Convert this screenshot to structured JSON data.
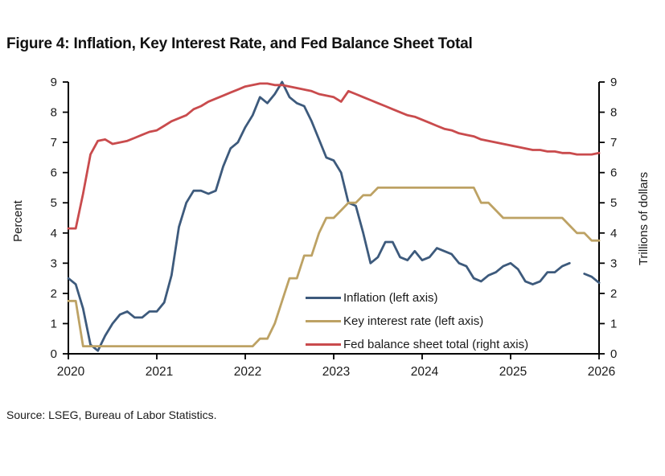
{
  "figure": {
    "title": "Figure 4: Inflation, Key Interest Rate, and Fed Balance Sheet Total",
    "source": "Source: LSEG, Bureau of Labor Statistics."
  },
  "colors": {
    "inflation": "#3d5a7c",
    "key_interest_rate": "#bda264",
    "fed_balance_sheet": "#c94b4d",
    "axis": "#000000",
    "text": "#1a1a1a"
  },
  "chart_data": {
    "type": "line",
    "title": "Figure 4: Inflation, Key Interest Rate, and Fed Balance Sheet Total",
    "x_axis": {
      "label": "",
      "range": [
        2020,
        2026
      ],
      "ticks": [
        2020,
        2021,
        2022,
        2023,
        2024,
        2025,
        2026
      ]
    },
    "y_left_axis": {
      "label": "Percent",
      "range": [
        0,
        9
      ],
      "ticks": [
        0,
        1,
        2,
        3,
        4,
        5,
        6,
        7,
        8,
        9
      ]
    },
    "y_right_axis": {
      "label": "Trillions of dollars",
      "range": [
        0,
        9
      ],
      "ticks": [
        0,
        1,
        2,
        3,
        4,
        5,
        6,
        7,
        8,
        9
      ]
    },
    "legend_position": "inside-middle-right",
    "grid": false,
    "x_unit": "monthly_decimal_year",
    "series": [
      {
        "id": "inflation",
        "name": "Inflation (left axis)",
        "axis": "left",
        "color": "#3d5a7c",
        "x_start": 2020,
        "x_step_months": 1,
        "note": "gap at Oct 2025 (no data published)",
        "values": [
          2.5,
          2.3,
          1.5,
          0.3,
          0.1,
          0.6,
          1.0,
          1.3,
          1.4,
          1.2,
          1.2,
          1.4,
          1.4,
          1.7,
          2.6,
          4.2,
          5.0,
          5.4,
          5.4,
          5.3,
          5.4,
          6.2,
          6.8,
          7.0,
          7.5,
          7.9,
          8.5,
          8.3,
          8.6,
          9.0,
          8.5,
          8.3,
          8.2,
          7.7,
          7.1,
          6.5,
          6.4,
          6.0,
          5.0,
          4.9,
          4.0,
          3.0,
          3.2,
          3.7,
          3.7,
          3.2,
          3.1,
          3.4,
          3.1,
          3.2,
          3.5,
          3.4,
          3.3,
          3.0,
          2.9,
          2.5,
          2.4,
          2.6,
          2.7,
          2.9,
          3.0,
          2.8,
          2.4,
          2.3,
          2.4,
          2.7,
          2.7,
          2.9,
          3.0,
          null,
          2.65,
          2.55,
          2.35
        ]
      },
      {
        "id": "key-interest-rate",
        "name": "Key interest rate (left axis)",
        "axis": "left",
        "color": "#bda264",
        "x_start": 2020,
        "x_step_months": 1,
        "values": [
          1.75,
          1.75,
          0.25,
          0.25,
          0.25,
          0.25,
          0.25,
          0.25,
          0.25,
          0.25,
          0.25,
          0.25,
          0.25,
          0.25,
          0.25,
          0.25,
          0.25,
          0.25,
          0.25,
          0.25,
          0.25,
          0.25,
          0.25,
          0.25,
          0.25,
          0.25,
          0.5,
          0.5,
          1.0,
          1.75,
          2.5,
          2.5,
          3.25,
          3.25,
          4.0,
          4.5,
          4.5,
          4.75,
          5.0,
          5.0,
          5.25,
          5.25,
          5.5,
          5.5,
          5.5,
          5.5,
          5.5,
          5.5,
          5.5,
          5.5,
          5.5,
          5.5,
          5.5,
          5.5,
          5.5,
          5.5,
          5.0,
          5.0,
          4.75,
          4.5,
          4.5,
          4.5,
          4.5,
          4.5,
          4.5,
          4.5,
          4.5,
          4.5,
          4.25,
          4.0,
          4.0,
          3.75,
          3.75
        ]
      },
      {
        "id": "fed-balance-sheet",
        "name": "Fed balance sheet total (right axis)",
        "axis": "right",
        "color": "#c94b4d",
        "x_start": 2020,
        "x_step_months": 1,
        "values": [
          4.15,
          4.15,
          5.3,
          6.6,
          7.05,
          7.1,
          6.95,
          7.0,
          7.05,
          7.15,
          7.25,
          7.35,
          7.4,
          7.55,
          7.7,
          7.8,
          7.9,
          8.1,
          8.2,
          8.35,
          8.45,
          8.55,
          8.65,
          8.75,
          8.85,
          8.9,
          8.95,
          8.95,
          8.9,
          8.9,
          8.85,
          8.8,
          8.75,
          8.7,
          8.6,
          8.55,
          8.5,
          8.35,
          8.7,
          8.6,
          8.5,
          8.4,
          8.3,
          8.2,
          8.1,
          8.0,
          7.9,
          7.85,
          7.75,
          7.65,
          7.55,
          7.45,
          7.4,
          7.3,
          7.25,
          7.2,
          7.1,
          7.05,
          7.0,
          6.95,
          6.9,
          6.85,
          6.8,
          6.75,
          6.75,
          6.7,
          6.7,
          6.65,
          6.65,
          6.6,
          6.6,
          6.6,
          6.65
        ]
      }
    ]
  }
}
